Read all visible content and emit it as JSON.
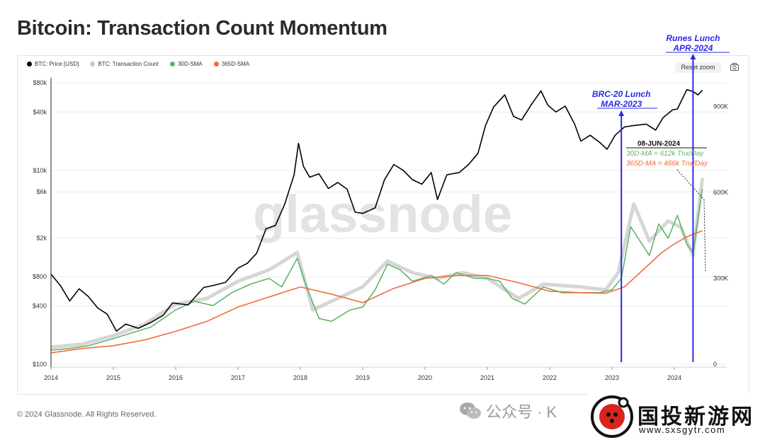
{
  "title": "Bitcoin: Transaction Count Momentum",
  "legend": [
    {
      "label": "BTC: Price [USD]",
      "color": "#000000"
    },
    {
      "label": "BTC: Transaction Count",
      "color": "#c8c8c8"
    },
    {
      "label": "30D-SMA",
      "color": "#5fb56a"
    },
    {
      "label": "365D-SMA",
      "color": "#f26b3a"
    }
  ],
  "controls": {
    "reset_zoom": "Reset zoom",
    "camera_icon": "camera-icon"
  },
  "watermark": "glassnode",
  "footer": "© 2024 Glassnode. All Rights Reserved.",
  "wechat": {
    "text": "公众号 · K",
    "icon": "wechat-icon"
  },
  "site": {
    "name": "国投新游网",
    "url": "www.sxsgytr.com"
  },
  "chart_data": {
    "type": "line",
    "title": "Bitcoin: Transaction Count Momentum",
    "x_ticks": [
      "2014",
      "2015",
      "2016",
      "2017",
      "2018",
      "2019",
      "2020",
      "2021",
      "2022",
      "2023",
      "2024"
    ],
    "x_range": [
      2014.0,
      2024.5
    ],
    "y_left": {
      "scale": "log",
      "range": [
        100,
        90000
      ],
      "ticks": [
        "$80k",
        "$40k",
        "$10k",
        "$6k",
        "$2k",
        "$800",
        "$400",
        "$100"
      ],
      "tick_values": [
        80000,
        40000,
        10000,
        6000,
        2000,
        800,
        400,
        100
      ]
    },
    "y_right": {
      "scale": "linear",
      "range": [
        0,
        1000000
      ],
      "ticks": [
        "900K",
        "600K",
        "300K",
        "0"
      ],
      "tick_values": [
        900000,
        600000,
        300000,
        0
      ]
    },
    "series": [
      {
        "name": "BTC: Price [USD]",
        "axis": "left",
        "color": "#000000",
        "points": [
          [
            2014.0,
            850
          ],
          [
            2014.15,
            650
          ],
          [
            2014.3,
            450
          ],
          [
            2014.45,
            600
          ],
          [
            2014.6,
            500
          ],
          [
            2014.75,
            380
          ],
          [
            2014.9,
            330
          ],
          [
            2015.05,
            220
          ],
          [
            2015.2,
            260
          ],
          [
            2015.4,
            235
          ],
          [
            2015.6,
            270
          ],
          [
            2015.8,
            320
          ],
          [
            2015.95,
            430
          ],
          [
            2016.2,
            410
          ],
          [
            2016.45,
            620
          ],
          [
            2016.6,
            650
          ],
          [
            2016.8,
            700
          ],
          [
            2017.0,
            980
          ],
          [
            2017.15,
            1100
          ],
          [
            2017.3,
            1400
          ],
          [
            2017.45,
            2500
          ],
          [
            2017.6,
            2700
          ],
          [
            2017.75,
            4500
          ],
          [
            2017.9,
            9000
          ],
          [
            2017.97,
            19000
          ],
          [
            2018.05,
            11000
          ],
          [
            2018.15,
            8500
          ],
          [
            2018.3,
            9200
          ],
          [
            2018.45,
            6500
          ],
          [
            2018.6,
            7500
          ],
          [
            2018.75,
            6400
          ],
          [
            2018.88,
            3700
          ],
          [
            2019.0,
            3600
          ],
          [
            2019.2,
            4100
          ],
          [
            2019.35,
            8000
          ],
          [
            2019.5,
            11500
          ],
          [
            2019.65,
            10000
          ],
          [
            2019.8,
            8000
          ],
          [
            2019.95,
            7200
          ],
          [
            2020.1,
            9500
          ],
          [
            2020.2,
            5000
          ],
          [
            2020.35,
            9000
          ],
          [
            2020.55,
            9500
          ],
          [
            2020.7,
            11500
          ],
          [
            2020.85,
            15000
          ],
          [
            2020.97,
            29000
          ],
          [
            2021.1,
            45000
          ],
          [
            2021.28,
            60000
          ],
          [
            2021.42,
            36000
          ],
          [
            2021.55,
            33000
          ],
          [
            2021.7,
            47000
          ],
          [
            2021.86,
            66000
          ],
          [
            2021.97,
            47000
          ],
          [
            2022.1,
            40000
          ],
          [
            2022.25,
            46000
          ],
          [
            2022.4,
            30000
          ],
          [
            2022.5,
            20000
          ],
          [
            2022.65,
            23000
          ],
          [
            2022.8,
            19500
          ],
          [
            2022.92,
            16500
          ],
          [
            2023.05,
            23000
          ],
          [
            2023.2,
            28000
          ],
          [
            2023.35,
            29000
          ],
          [
            2023.55,
            30000
          ],
          [
            2023.7,
            26000
          ],
          [
            2023.82,
            35000
          ],
          [
            2023.97,
            42000
          ],
          [
            2024.05,
            43000
          ],
          [
            2024.2,
            68000
          ],
          [
            2024.3,
            65000
          ],
          [
            2024.38,
            60000
          ],
          [
            2024.45,
            67000
          ]
        ]
      },
      {
        "name": "BTC: Transaction Count",
        "axis": "right",
        "color": "#c8c8c8",
        "points": [
          [
            2014.0,
            60000
          ],
          [
            2014.5,
            70000
          ],
          [
            2015.0,
            100000
          ],
          [
            2015.5,
            140000
          ],
          [
            2016.0,
            210000
          ],
          [
            2016.5,
            230000
          ],
          [
            2017.0,
            290000
          ],
          [
            2017.5,
            330000
          ],
          [
            2017.95,
            390000
          ],
          [
            2018.2,
            190000
          ],
          [
            2018.5,
            220000
          ],
          [
            2019.0,
            270000
          ],
          [
            2019.4,
            360000
          ],
          [
            2019.8,
            320000
          ],
          [
            2020.2,
            300000
          ],
          [
            2020.6,
            320000
          ],
          [
            2021.0,
            300000
          ],
          [
            2021.5,
            230000
          ],
          [
            2021.9,
            280000
          ],
          [
            2022.5,
            270000
          ],
          [
            2022.9,
            260000
          ],
          [
            2023.1,
            320000
          ],
          [
            2023.35,
            560000
          ],
          [
            2023.6,
            430000
          ],
          [
            2023.9,
            500000
          ],
          [
            2024.1,
            480000
          ],
          [
            2024.3,
            380000
          ],
          [
            2024.45,
            650000
          ]
        ]
      },
      {
        "name": "30D-SMA",
        "axis": "right",
        "color": "#5fb56a",
        "points": [
          [
            2014.0,
            50000
          ],
          [
            2014.3,
            55000
          ],
          [
            2014.6,
            65000
          ],
          [
            2015.0,
            90000
          ],
          [
            2015.3,
            110000
          ],
          [
            2015.6,
            130000
          ],
          [
            2016.0,
            190000
          ],
          [
            2016.3,
            220000
          ],
          [
            2016.6,
            205000
          ],
          [
            2016.9,
            250000
          ],
          [
            2017.2,
            280000
          ],
          [
            2017.5,
            300000
          ],
          [
            2017.7,
            270000
          ],
          [
            2017.95,
            370000
          ],
          [
            2018.1,
            270000
          ],
          [
            2018.3,
            160000
          ],
          [
            2018.5,
            150000
          ],
          [
            2018.8,
            190000
          ],
          [
            2019.0,
            200000
          ],
          [
            2019.2,
            260000
          ],
          [
            2019.4,
            350000
          ],
          [
            2019.6,
            330000
          ],
          [
            2019.8,
            290000
          ],
          [
            2020.1,
            310000
          ],
          [
            2020.3,
            280000
          ],
          [
            2020.5,
            320000
          ],
          [
            2020.8,
            300000
          ],
          [
            2021.0,
            300000
          ],
          [
            2021.2,
            290000
          ],
          [
            2021.4,
            230000
          ],
          [
            2021.6,
            210000
          ],
          [
            2021.9,
            270000
          ],
          [
            2022.2,
            250000
          ],
          [
            2022.5,
            250000
          ],
          [
            2022.8,
            250000
          ],
          [
            2023.0,
            260000
          ],
          [
            2023.15,
            300000
          ],
          [
            2023.3,
            480000
          ],
          [
            2023.45,
            430000
          ],
          [
            2023.6,
            380000
          ],
          [
            2023.75,
            490000
          ],
          [
            2023.9,
            440000
          ],
          [
            2024.05,
            520000
          ],
          [
            2024.2,
            420000
          ],
          [
            2024.3,
            390000
          ],
          [
            2024.45,
            612000
          ]
        ]
      },
      {
        "name": "365D-SMA",
        "axis": "right",
        "color": "#f26b3a",
        "points": [
          [
            2014.0,
            40000
          ],
          [
            2014.5,
            55000
          ],
          [
            2015.0,
            65000
          ],
          [
            2015.5,
            85000
          ],
          [
            2016.0,
            115000
          ],
          [
            2016.5,
            150000
          ],
          [
            2017.0,
            200000
          ],
          [
            2017.5,
            235000
          ],
          [
            2018.0,
            270000
          ],
          [
            2018.5,
            245000
          ],
          [
            2019.0,
            215000
          ],
          [
            2019.5,
            265000
          ],
          [
            2020.0,
            300000
          ],
          [
            2020.5,
            310000
          ],
          [
            2021.0,
            310000
          ],
          [
            2021.5,
            285000
          ],
          [
            2022.0,
            255000
          ],
          [
            2022.5,
            250000
          ],
          [
            2022.9,
            248000
          ],
          [
            2023.2,
            270000
          ],
          [
            2023.5,
            330000
          ],
          [
            2023.8,
            390000
          ],
          [
            2024.0,
            420000
          ],
          [
            2024.2,
            445000
          ],
          [
            2024.45,
            466000
          ]
        ]
      }
    ],
    "annotations": {
      "brc20": {
        "line1": "BRC-20 Lunch",
        "line2": "MAR-2023",
        "x": 2023.15
      },
      "runes": {
        "line1": "Runes Lunch",
        "line2": "APR-2024",
        "x": 2024.3
      },
      "date_box": {
        "date": "08-JUN-2024",
        "sma30": "30D-MA = 612k Tnx/Day",
        "sma365": "365D-MA = 466k Tnx/Day"
      }
    }
  }
}
